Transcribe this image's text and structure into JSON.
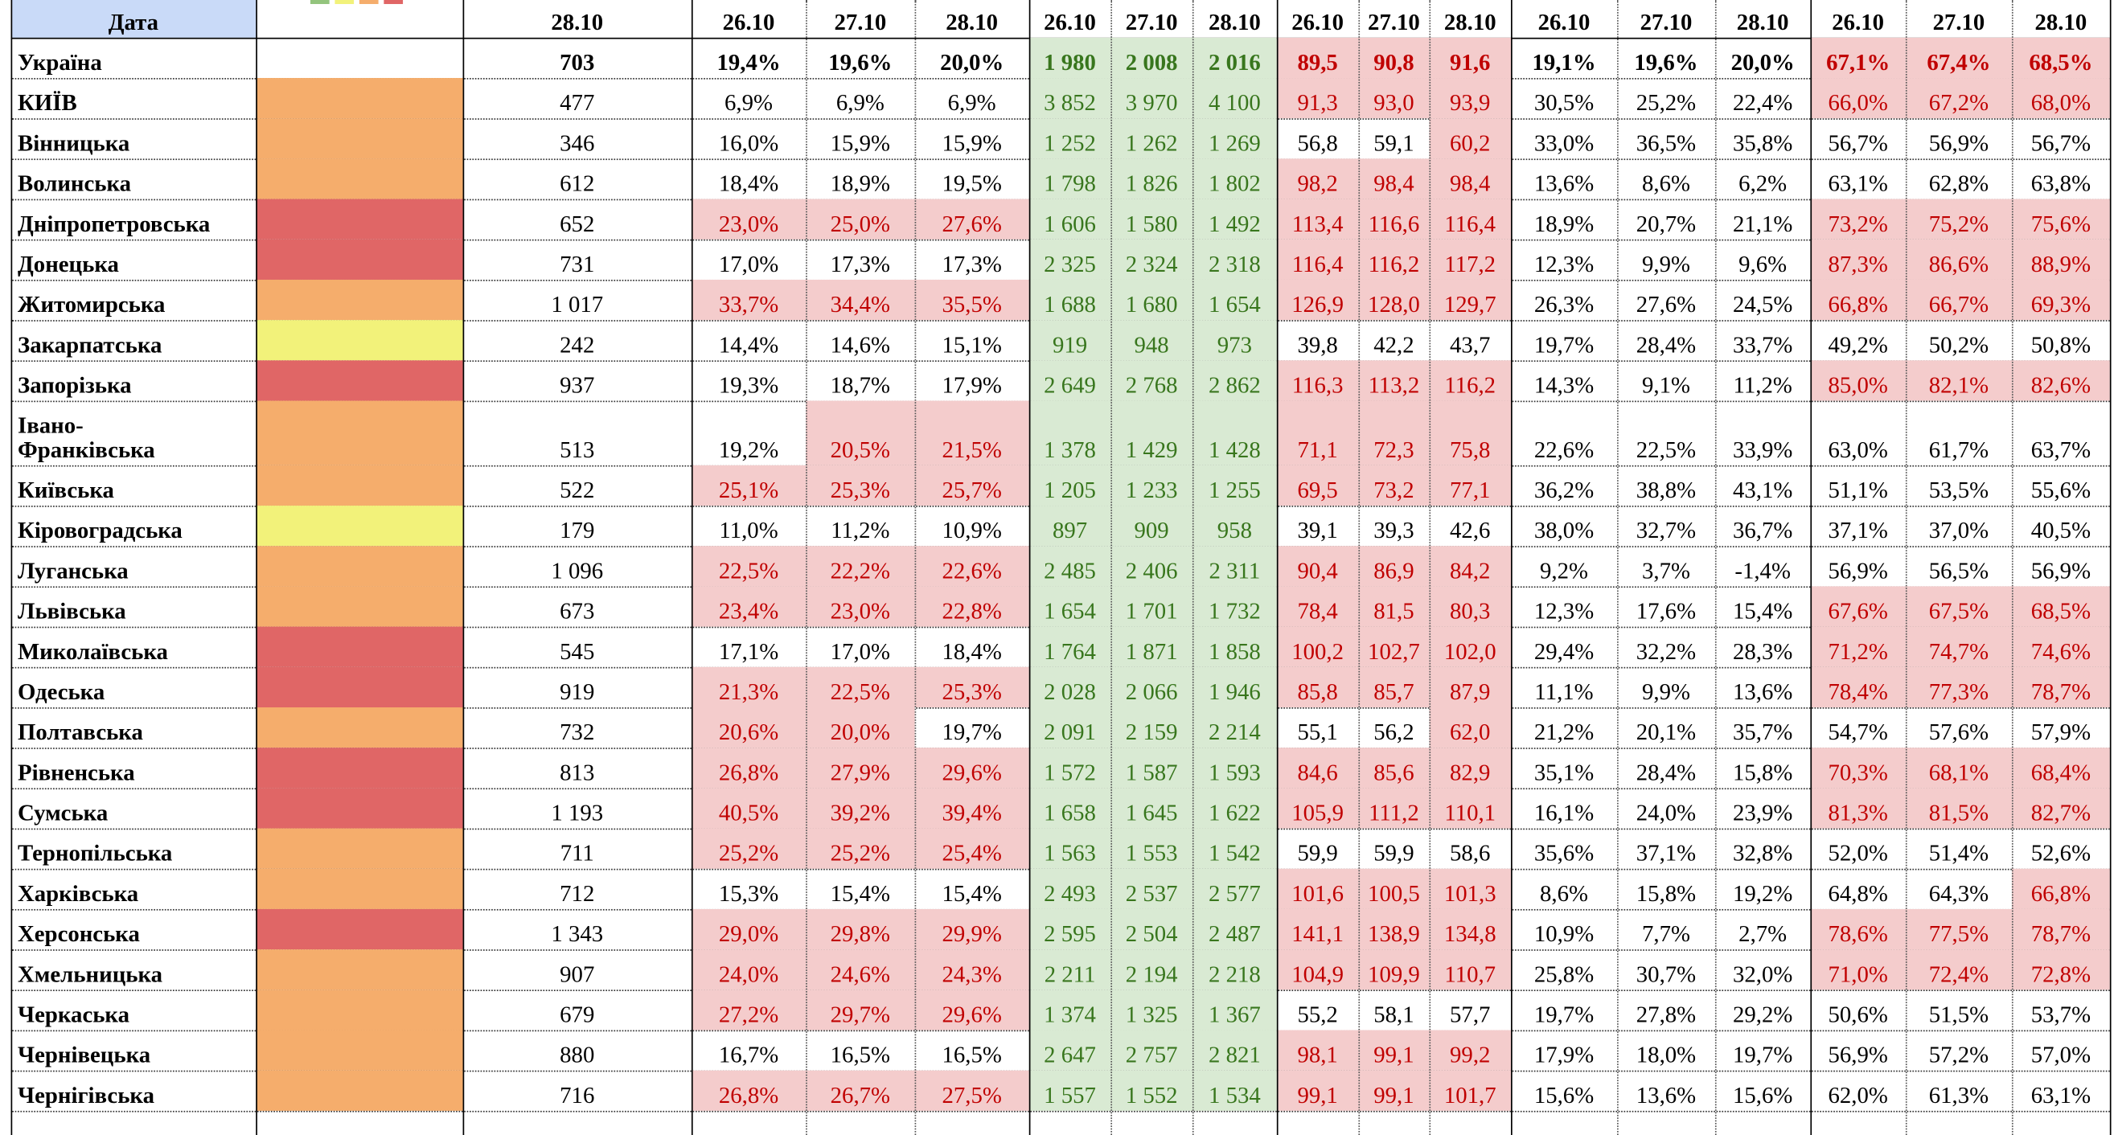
{
  "table": {
    "header": {
      "name": "Дата",
      "cells": [
        "28.10",
        "26.10",
        "27.10",
        "28.10",
        "26.10",
        "27.10",
        "28.10",
        "26.10",
        "27.10",
        "28.10",
        "26.10",
        "27.10",
        "28.10",
        "26.10",
        "27.10",
        "28.10"
      ]
    },
    "total": {
      "name": "Україна",
      "cells": [
        "703",
        "19,4%",
        "19,6%",
        "20,0%",
        "1 980",
        "2 008",
        "2 016",
        "89,5",
        "90,8",
        "91,6",
        "19,1%",
        "19,6%",
        "20,0%",
        "67,1%",
        "67,4%",
        "68,5%"
      ],
      "shade": "....gggrrr...rrr"
    },
    "rows": [
      {
        "name": "КИЇВ",
        "zone": "#f5ad6c",
        "cells": [
          "477",
          "6,9%",
          "6,9%",
          "6,9%",
          "3 852",
          "3 970",
          "4 100",
          "91,3",
          "93,0",
          "93,9",
          "30,5%",
          "25,2%",
          "22,4%",
          "66,0%",
          "67,2%",
          "68,0%"
        ],
        "shade": "....gggrrr...rrr"
      },
      {
        "name": "Вінницька",
        "zone": "#f5ad6c",
        "cells": [
          "346",
          "16,0%",
          "15,9%",
          "15,9%",
          "1 252",
          "1 262",
          "1 269",
          "56,8",
          "59,1",
          "60,2",
          "33,0%",
          "36,5%",
          "35,8%",
          "56,7%",
          "56,9%",
          "56,7%"
        ],
        "shade": "....ggg..r......"
      },
      {
        "name": "Волинська",
        "zone": "#f5ad6c",
        "cells": [
          "612",
          "18,4%",
          "18,9%",
          "19,5%",
          "1 798",
          "1 826",
          "1 802",
          "98,2",
          "98,4",
          "98,4",
          "13,6%",
          "8,6%",
          "6,2%",
          "63,1%",
          "62,8%",
          "63,8%"
        ],
        "shade": "....gggrrr......"
      },
      {
        "name": "Дніпропетровська",
        "zone": "#e06666",
        "cells": [
          "652",
          "23,0%",
          "25,0%",
          "27,6%",
          "1 606",
          "1 580",
          "1 492",
          "113,4",
          "116,6",
          "116,4",
          "18,9%",
          "20,7%",
          "21,1%",
          "73,2%",
          "75,2%",
          "75,6%"
        ],
        "shade": ".rrrgggrrr...rrr"
      },
      {
        "name": "Донецька",
        "zone": "#e06666",
        "cells": [
          "731",
          "17,0%",
          "17,3%",
          "17,3%",
          "2 325",
          "2 324",
          "2 318",
          "116,4",
          "116,2",
          "117,2",
          "12,3%",
          "9,9%",
          "9,6%",
          "87,3%",
          "86,6%",
          "88,9%"
        ],
        "shade": "....gggrrr...rrr"
      },
      {
        "name": "Житомирська",
        "zone": "#f5ad6c",
        "cells": [
          "1 017",
          "33,7%",
          "34,4%",
          "35,5%",
          "1 688",
          "1 680",
          "1 654",
          "126,9",
          "128,0",
          "129,7",
          "26,3%",
          "27,6%",
          "24,5%",
          "66,8%",
          "66,7%",
          "69,3%"
        ],
        "shade": ".rrrgggrrr...rrr"
      },
      {
        "name": "Закарпатська",
        "zone": "#f2f27a",
        "cells": [
          "242",
          "14,4%",
          "14,6%",
          "15,1%",
          "919",
          "948",
          "973",
          "39,8",
          "42,2",
          "43,7",
          "19,7%",
          "28,4%",
          "33,7%",
          "49,2%",
          "50,2%",
          "50,8%"
        ],
        "shade": "....ggg........."
      },
      {
        "name": "Запорізька",
        "zone": "#e06666",
        "cells": [
          "937",
          "19,3%",
          "18,7%",
          "17,9%",
          "2 649",
          "2 768",
          "2 862",
          "116,3",
          "113,2",
          "116,2",
          "14,3%",
          "9,1%",
          "11,2%",
          "85,0%",
          "82,1%",
          "82,6%"
        ],
        "shade": "....gggrrr...rrr"
      },
      {
        "name": "Івано-Франківська",
        "zone": "#f5ad6c",
        "cells": [
          "513",
          "19,2%",
          "20,5%",
          "21,5%",
          "1 378",
          "1 429",
          "1 428",
          "71,1",
          "72,3",
          "75,8",
          "22,6%",
          "22,5%",
          "33,9%",
          "63,0%",
          "61,7%",
          "63,7%"
        ],
        "shade": "..rrgggrrr......"
      },
      {
        "name": "Київська",
        "zone": "#f5ad6c",
        "cells": [
          "522",
          "25,1%",
          "25,3%",
          "25,7%",
          "1 205",
          "1 233",
          "1 255",
          "69,5",
          "73,2",
          "77,1",
          "36,2%",
          "38,8%",
          "43,1%",
          "51,1%",
          "53,5%",
          "55,6%"
        ],
        "shade": ".rrrgggrrr......"
      },
      {
        "name": "Кіровоградська",
        "zone": "#f2f27a",
        "cells": [
          "179",
          "11,0%",
          "11,2%",
          "10,9%",
          "897",
          "909",
          "958",
          "39,1",
          "39,3",
          "42,6",
          "38,0%",
          "32,7%",
          "36,7%",
          "37,1%",
          "37,0%",
          "40,5%"
        ],
        "shade": "....ggg........."
      },
      {
        "name": "Луганська",
        "zone": "#f5ad6c",
        "cells": [
          "1 096",
          "22,5%",
          "22,2%",
          "22,6%",
          "2 485",
          "2 406",
          "2 311",
          "90,4",
          "86,9",
          "84,2",
          "9,2%",
          "3,7%",
          "-1,4%",
          "56,9%",
          "56,5%",
          "56,9%"
        ],
        "shade": ".rrrgggrrr......"
      },
      {
        "name": "Львівська",
        "zone": "#f5ad6c",
        "cells": [
          "673",
          "23,4%",
          "23,0%",
          "22,8%",
          "1 654",
          "1 701",
          "1 732",
          "78,4",
          "81,5",
          "80,3",
          "12,3%",
          "17,6%",
          "15,4%",
          "67,6%",
          "67,5%",
          "68,5%"
        ],
        "shade": ".rrrgggrrr...rrr"
      },
      {
        "name": "Миколаївська",
        "zone": "#e06666",
        "cells": [
          "545",
          "17,1%",
          "17,0%",
          "18,4%",
          "1 764",
          "1 871",
          "1 858",
          "100,2",
          "102,7",
          "102,0",
          "29,4%",
          "32,2%",
          "28,3%",
          "71,2%",
          "74,7%",
          "74,6%"
        ],
        "shade": "....gggrrr...rrr"
      },
      {
        "name": "Одеська",
        "zone": "#e06666",
        "cells": [
          "919",
          "21,3%",
          "22,5%",
          "25,3%",
          "2 028",
          "2 066",
          "1 946",
          "85,8",
          "85,7",
          "87,9",
          "11,1%",
          "9,9%",
          "13,6%",
          "78,4%",
          "77,3%",
          "78,7%"
        ],
        "shade": ".rrrgggrrr...rrr"
      },
      {
        "name": "Полтавська",
        "zone": "#f5ad6c",
        "cells": [
          "732",
          "20,6%",
          "20,0%",
          "19,7%",
          "2 091",
          "2 159",
          "2 214",
          "55,1",
          "56,2",
          "62,0",
          "21,2%",
          "20,1%",
          "35,7%",
          "54,7%",
          "57,6%",
          "57,9%"
        ],
        "shade": ".rr.ggg..r......"
      },
      {
        "name": "Рівненська",
        "zone": "#e06666",
        "cells": [
          "813",
          "26,8%",
          "27,9%",
          "29,6%",
          "1 572",
          "1 587",
          "1 593",
          "84,6",
          "85,6",
          "82,9",
          "35,1%",
          "28,4%",
          "15,8%",
          "70,3%",
          "68,1%",
          "68,4%"
        ],
        "shade": ".rrrgggrrr...rrr"
      },
      {
        "name": "Сумська",
        "zone": "#e06666",
        "cells": [
          "1 193",
          "40,5%",
          "39,2%",
          "39,4%",
          "1 658",
          "1 645",
          "1 622",
          "105,9",
          "111,2",
          "110,1",
          "16,1%",
          "24,0%",
          "23,9%",
          "81,3%",
          "81,5%",
          "82,7%"
        ],
        "shade": ".rrrgggrrr...rrr"
      },
      {
        "name": "Тернопільська",
        "zone": "#f5ad6c",
        "cells": [
          "711",
          "25,2%",
          "25,2%",
          "25,4%",
          "1 563",
          "1 553",
          "1 542",
          "59,9",
          "59,9",
          "58,6",
          "35,6%",
          "37,1%",
          "32,8%",
          "52,0%",
          "51,4%",
          "52,6%"
        ],
        "shade": ".rrrggg........."
      },
      {
        "name": "Харківська",
        "zone": "#f5ad6c",
        "cells": [
          "712",
          "15,3%",
          "15,4%",
          "15,4%",
          "2 493",
          "2 537",
          "2 577",
          "101,6",
          "100,5",
          "101,3",
          "8,6%",
          "15,8%",
          "19,2%",
          "64,8%",
          "64,3%",
          "66,8%"
        ],
        "shade": "....gggrrr.....r"
      },
      {
        "name": "Херсонська",
        "zone": "#e06666",
        "cells": [
          "1 343",
          "29,0%",
          "29,8%",
          "29,9%",
          "2 595",
          "2 504",
          "2 487",
          "141,1",
          "138,9",
          "134,8",
          "10,9%",
          "7,7%",
          "2,7%",
          "78,6%",
          "77,5%",
          "78,7%"
        ],
        "shade": ".rrrgggrrr...rrr"
      },
      {
        "name": "Хмельницька",
        "zone": "#f5ad6c",
        "cells": [
          "907",
          "24,0%",
          "24,6%",
          "24,3%",
          "2 211",
          "2 194",
          "2 218",
          "104,9",
          "109,9",
          "110,7",
          "25,8%",
          "30,7%",
          "32,0%",
          "71,0%",
          "72,4%",
          "72,8%"
        ],
        "shade": ".rrrgggrrr...rrr"
      },
      {
        "name": "Черкаська",
        "zone": "#f5ad6c",
        "cells": [
          "679",
          "27,2%",
          "29,7%",
          "29,6%",
          "1 374",
          "1 325",
          "1 367",
          "55,2",
          "58,1",
          "57,7",
          "19,7%",
          "27,8%",
          "29,2%",
          "50,6%",
          "51,5%",
          "53,7%"
        ],
        "shade": ".rrrggg........."
      },
      {
        "name": "Чернівецька",
        "zone": "#f5ad6c",
        "cells": [
          "880",
          "16,7%",
          "16,5%",
          "16,5%",
          "2 647",
          "2 757",
          "2 821",
          "98,1",
          "99,1",
          "99,2",
          "17,9%",
          "18,0%",
          "19,7%",
          "56,9%",
          "57,2%",
          "57,0%"
        ],
        "shade": "....gggrrr......"
      },
      {
        "name": "Чернігівська",
        "zone": "#f5ad6c",
        "cells": [
          "716",
          "26,8%",
          "26,7%",
          "27,5%",
          "1 557",
          "1 552",
          "1 534",
          "99,1",
          "99,1",
          "101,7",
          "15,6%",
          "13,6%",
          "15,6%",
          "62,0%",
          "61,3%",
          "63,1%"
        ],
        "shade": ".rrrgggrrr......"
      }
    ]
  }
}
